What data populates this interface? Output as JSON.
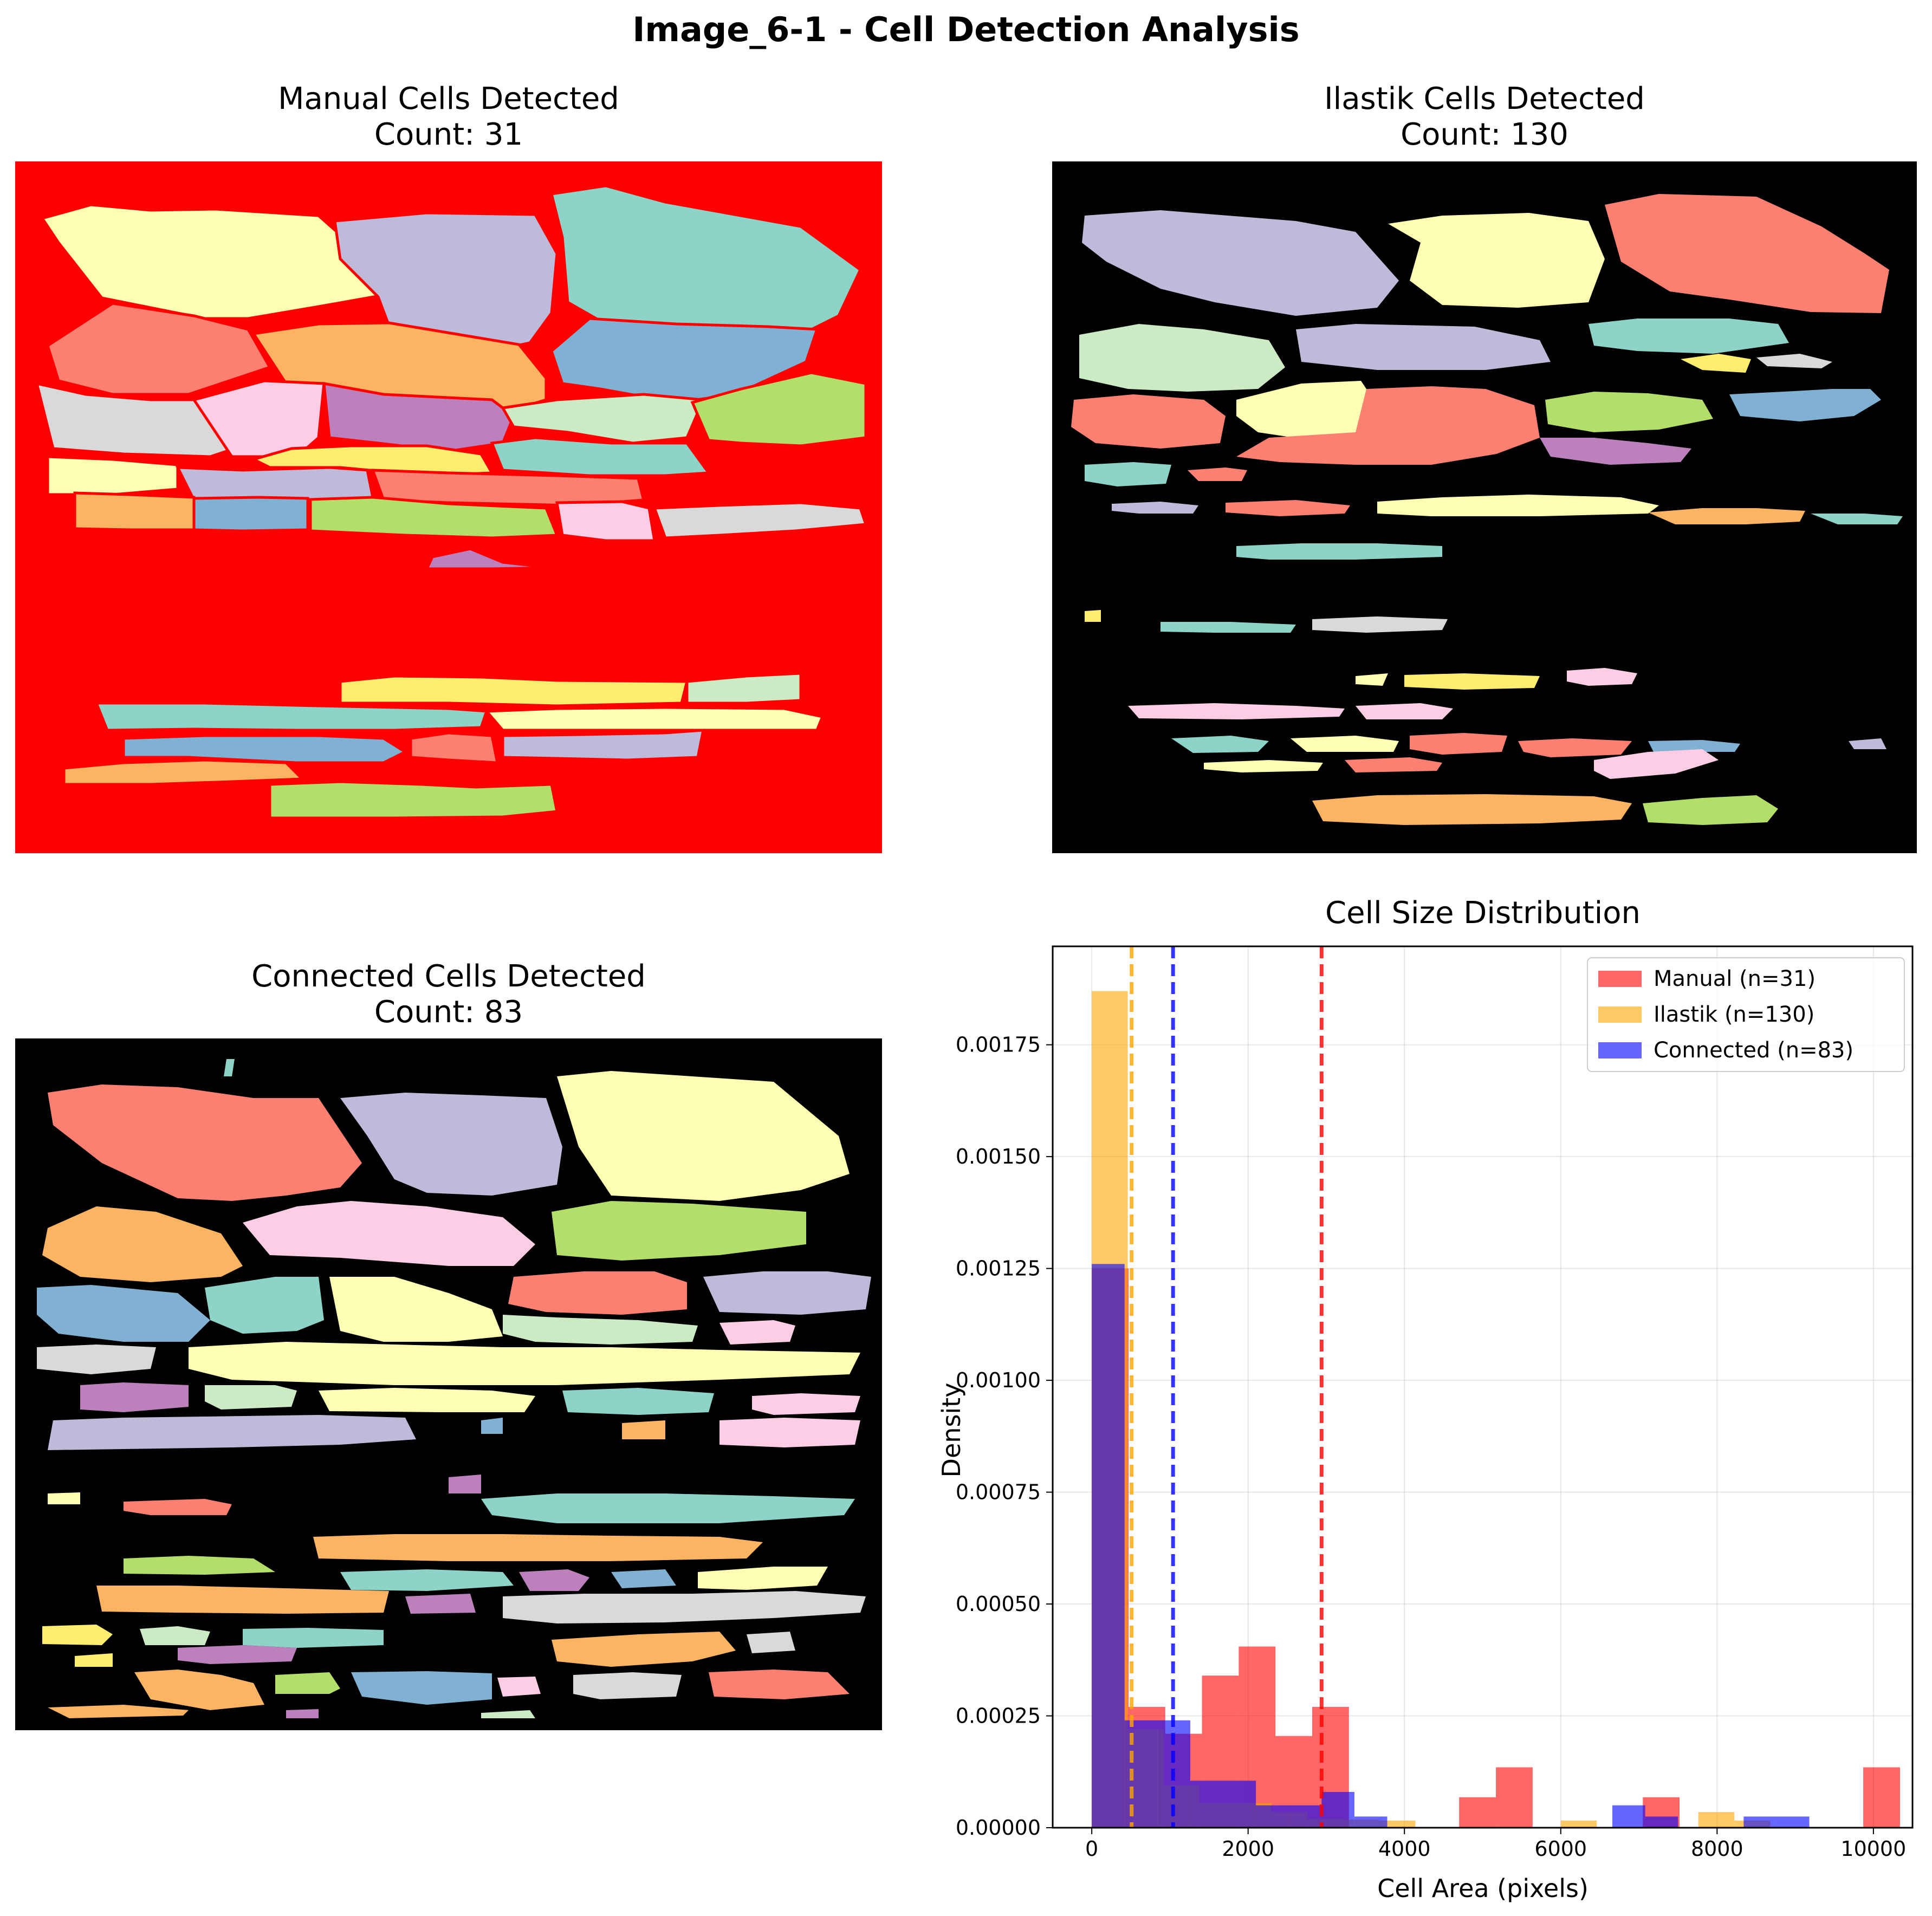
{
  "figure_title": "Image_6-1 - Cell Detection Analysis",
  "panels": {
    "manual": {
      "title": "Manual Cells Detected",
      "count": "Count: 31"
    },
    "ilastik": {
      "title": "Ilastik Cells Detected",
      "count": "Count: 130"
    },
    "connected": {
      "title": "Connected Cells Detected",
      "count": "Count: 83"
    }
  },
  "colors": {
    "manual_bg": "#ff0000",
    "mask_bg": "#000000",
    "palette": [
      "#8dd3c7",
      "#ffffb3",
      "#bebada",
      "#fb8072",
      "#80b1d3",
      "#fdb462",
      "#b3de69",
      "#fccde5",
      "#d9d9d9",
      "#bc80bd",
      "#ccebc5",
      "#ffed6f"
    ],
    "manual_hist": "#ff0000",
    "ilastik_hist": "#ffa500",
    "connected_hist": "#0000ff"
  },
  "chart_data": {
    "type": "bar",
    "title": "Cell Size Distribution",
    "xlabel": "Cell Area (pixels)",
    "ylabel": "Density",
    "xlim": [
      -500,
      10500
    ],
    "ylim": [
      0,
      0.00197
    ],
    "x_ticks": [
      0,
      2000,
      4000,
      6000,
      8000,
      10000
    ],
    "y_ticks": [
      0.0,
      0.00025,
      0.0005,
      0.00075,
      0.001,
      0.00125,
      0.0015,
      0.00175
    ],
    "y_tick_labels": [
      "0.00000",
      "0.00025",
      "0.00050",
      "0.00075",
      "0.00100",
      "0.00125",
      "0.00150",
      "0.00175"
    ],
    "grid": true,
    "legend_position": "top-right",
    "series": [
      {
        "name": "Manual (n=31)",
        "color": "#ff0000",
        "alpha": 0.6,
        "mean": 2940,
        "bins": [
          [
            0,
            470,
            0.00125
          ],
          [
            470,
            940,
            0.00027
          ],
          [
            940,
            1410,
            0.00021
          ],
          [
            1410,
            1880,
            0.00034
          ],
          [
            1880,
            2350,
            0.000405
          ],
          [
            2350,
            2820,
            0.000205
          ],
          [
            2820,
            3290,
            0.00027
          ],
          [
            4700,
            5170,
            6.8e-05
          ],
          [
            5170,
            5640,
            0.000135
          ],
          [
            7050,
            7520,
            6.8e-05
          ],
          [
            9870,
            10340,
            0.000135
          ]
        ]
      },
      {
        "name": "Ilastik (n=130)",
        "color": "#ffa500",
        "alpha": 0.6,
        "mean": 510,
        "bins": [
          [
            0,
            460,
            0.00187
          ],
          [
            460,
            920,
            0.00022
          ],
          [
            920,
            1380,
            9.5e-05
          ],
          [
            1380,
            1840,
            5.5e-05
          ],
          [
            1840,
            2300,
            5.5e-05
          ],
          [
            2300,
            2760,
            3.5e-05
          ],
          [
            2760,
            3220,
            2e-05
          ],
          [
            3220,
            3680,
            1.8e-05
          ],
          [
            3680,
            4140,
            1.6e-05
          ],
          [
            6000,
            6460,
            1.6e-05
          ],
          [
            7760,
            8220,
            3.5e-05
          ],
          [
            8220,
            8680,
            1.6e-05
          ]
        ]
      },
      {
        "name": "Connected (n=83)",
        "color": "#0000ff",
        "alpha": 0.6,
        "mean": 1040,
        "bins": [
          [
            0,
            420,
            0.00126
          ],
          [
            420,
            840,
            0.00024
          ],
          [
            840,
            1260,
            0.00024
          ],
          [
            1260,
            1680,
            0.000105
          ],
          [
            1680,
            2100,
            0.000105
          ],
          [
            2100,
            2520,
            5e-05
          ],
          [
            2520,
            2940,
            5e-05
          ],
          [
            2940,
            3360,
            8e-05
          ],
          [
            3360,
            3780,
            2.5e-05
          ],
          [
            6660,
            7080,
            5e-05
          ],
          [
            7080,
            7500,
            2.5e-05
          ],
          [
            8340,
            8760,
            2.5e-05
          ],
          [
            8760,
            9180,
            2.5e-05
          ]
        ]
      }
    ]
  }
}
